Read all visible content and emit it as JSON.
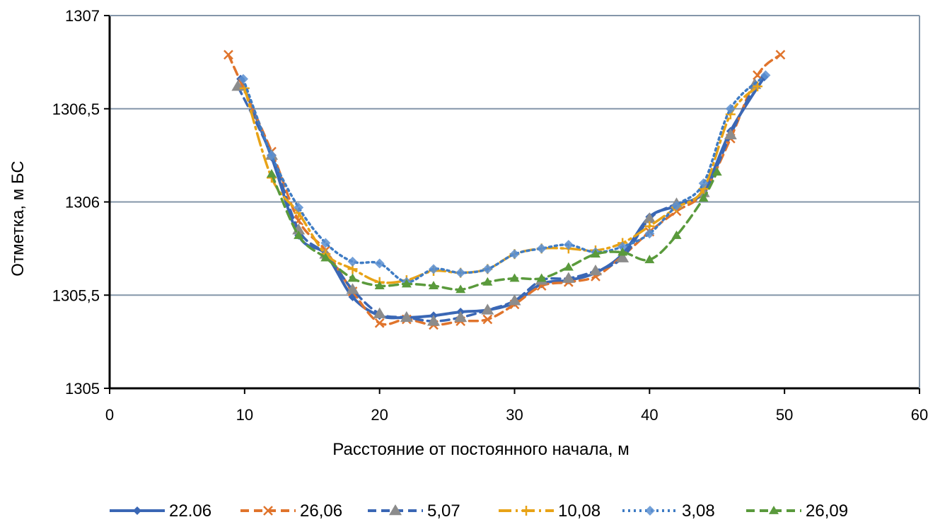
{
  "chart_data": {
    "type": "line",
    "xlabel": "Расстояние от постоянного начала, м",
    "ylabel": "Отметка, м БС",
    "xlim": [
      0,
      60
    ],
    "ylim": [
      1305,
      1307
    ],
    "x_ticks": [
      "0",
      "10",
      "20",
      "30",
      "40",
      "50",
      "60"
    ],
    "y_ticks": [
      "1305",
      "1305,5",
      "1306",
      "1306,5",
      "1307"
    ],
    "grid": "horizontal",
    "legend_position": "bottom",
    "series": [
      {
        "name": "22.06",
        "color": "#3a67b5",
        "dash": "solid",
        "marker": "diamond",
        "x": [
          9.7,
          12,
          14,
          16,
          18,
          20,
          22,
          24,
          26,
          28,
          30,
          32,
          34,
          36,
          38,
          40,
          42,
          44,
          46,
          48.5
        ],
        "y": [
          1306.66,
          1306.24,
          1305.82,
          1305.72,
          1305.49,
          1305.39,
          1305.38,
          1305.39,
          1305.41,
          1305.42,
          1305.46,
          1305.56,
          1305.58,
          1305.62,
          1305.72,
          1305.92,
          1305.98,
          1306.06,
          1306.38,
          1306.67
        ]
      },
      {
        "name": "26,06",
        "color": "#e0742c",
        "dash": "dashed",
        "marker": "x",
        "x": [
          8.8,
          12,
          14,
          16,
          18,
          20,
          22,
          24,
          26,
          28,
          30,
          32,
          34,
          36,
          38,
          40,
          42,
          44,
          46,
          48,
          49.7
        ],
        "y": [
          1306.79,
          1306.27,
          1305.9,
          1305.74,
          1305.52,
          1305.35,
          1305.37,
          1305.34,
          1305.36,
          1305.37,
          1305.45,
          1305.55,
          1305.57,
          1305.6,
          1305.71,
          1305.84,
          1305.95,
          1306.05,
          1306.34,
          1306.68,
          1306.79
        ]
      },
      {
        "name": "5,07",
        "color": "#3a67b5",
        "dash": "dashed",
        "marker": "triangle-gray",
        "x": [
          9.5,
          12,
          14,
          16,
          18,
          20,
          22,
          24,
          26,
          28,
          30,
          32,
          34,
          36,
          38,
          40,
          42,
          44,
          46,
          47.8
        ],
        "y": [
          1306.62,
          1306.25,
          1305.85,
          1305.72,
          1305.53,
          1305.4,
          1305.38,
          1305.36,
          1305.38,
          1305.42,
          1305.47,
          1305.58,
          1305.59,
          1305.63,
          1305.7,
          1305.91,
          1305.99,
          1306.05,
          1306.36,
          1306.63
        ]
      },
      {
        "name": "10,08",
        "color": "#e8a317",
        "dash": "dash-dot",
        "marker": "plus",
        "x": [
          10,
          12,
          14,
          16,
          18,
          20,
          22,
          24,
          26,
          28,
          30,
          32,
          34,
          36,
          38,
          40,
          42,
          44,
          46,
          48
        ],
        "y": [
          1306.61,
          1306.13,
          1305.94,
          1305.72,
          1305.64,
          1305.57,
          1305.58,
          1305.63,
          1305.62,
          1305.64,
          1305.72,
          1305.75,
          1305.75,
          1305.74,
          1305.78,
          1305.87,
          1305.97,
          1306.07,
          1306.47,
          1306.62
        ]
      },
      {
        "name": "3,08",
        "color": "#3f7cc4",
        "dash": "dotted",
        "marker": "diamond-light",
        "x": [
          9.9,
          12,
          14,
          16,
          18,
          20,
          22,
          24,
          26,
          28,
          30,
          32,
          34,
          36,
          38,
          40,
          42,
          44,
          46,
          48.6
        ],
        "y": [
          1306.66,
          1306.25,
          1305.97,
          1305.78,
          1305.68,
          1305.67,
          1305.57,
          1305.64,
          1305.62,
          1305.64,
          1305.72,
          1305.75,
          1305.77,
          1305.73,
          1305.76,
          1305.83,
          1305.98,
          1306.1,
          1306.5,
          1306.68
        ]
      },
      {
        "name": "26,09",
        "color": "#5a9a3c",
        "dash": "dashed",
        "marker": "triangle-green",
        "x": [
          12,
          14,
          16,
          18,
          20,
          22,
          24,
          26,
          28,
          30,
          32,
          34,
          36,
          38,
          40,
          42,
          44,
          45
        ],
        "y": [
          1306.15,
          1305.82,
          1305.7,
          1305.59,
          1305.55,
          1305.56,
          1305.55,
          1305.53,
          1305.57,
          1305.59,
          1305.59,
          1305.65,
          1305.72,
          1305.73,
          1305.69,
          1305.82,
          1306.02,
          1306.16
        ]
      }
    ]
  }
}
